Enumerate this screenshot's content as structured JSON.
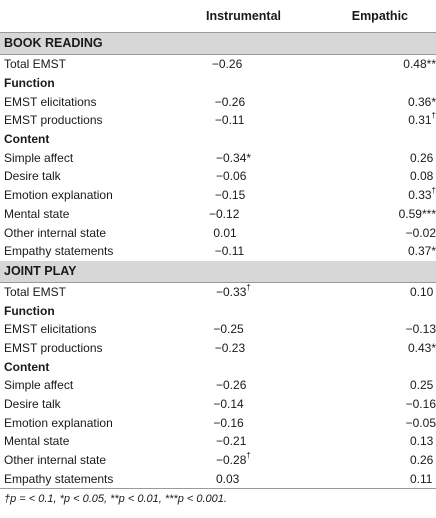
{
  "header": {
    "col1": "",
    "col2": "Instrumental",
    "col3": "Empathic"
  },
  "sections": [
    {
      "title": "BOOK READING",
      "rows": [
        {
          "label": "Total EMST",
          "instrumental": "−0.26",
          "empathic": "0.48**",
          "inst_sup": "",
          "emp_sup": ""
        },
        {
          "label": "Function",
          "sub": true
        },
        {
          "label": "EMST elicitations",
          "instrumental": "−0.26",
          "empathic": "0.36*",
          "inst_sup": "",
          "emp_sup": ""
        },
        {
          "label": "EMST productions",
          "instrumental": "−0.11",
          "empathic": "0.31",
          "inst_sup": "",
          "emp_sup": "†"
        },
        {
          "label": "Content",
          "sub": true
        },
        {
          "label": "Simple affect",
          "instrumental": "−0.34*",
          "empathic": "0.26",
          "inst_sup": "",
          "emp_sup": ""
        },
        {
          "label": "Desire talk",
          "instrumental": "−0.06",
          "empathic": "0.08",
          "inst_sup": "",
          "emp_sup": ""
        },
        {
          "label": "Emotion explanation",
          "instrumental": "−0.15",
          "empathic": "0.33",
          "inst_sup": "",
          "emp_sup": "†"
        },
        {
          "label": "Mental state",
          "instrumental": "−0.12",
          "empathic": "0.59***",
          "inst_sup": "",
          "emp_sup": ""
        },
        {
          "label": "Other internal state",
          "instrumental": "0.01",
          "empathic": "−0.02",
          "inst_sup": "",
          "emp_sup": ""
        },
        {
          "label": "Empathy statements",
          "instrumental": "−0.11",
          "empathic": "0.37*",
          "inst_sup": "",
          "emp_sup": ""
        }
      ]
    },
    {
      "title": "JOINT PLAY",
      "rows": [
        {
          "label": "Total EMST",
          "instrumental": "−0.33",
          "empathic": "0.10",
          "inst_sup": "†",
          "emp_sup": ""
        },
        {
          "label": "Function",
          "sub": true
        },
        {
          "label": "EMST elicitations",
          "instrumental": "−0.25",
          "empathic": "−0.13",
          "inst_sup": "",
          "emp_sup": ""
        },
        {
          "label": "EMST productions",
          "instrumental": "−0.23",
          "empathic": "0.43*",
          "inst_sup": "",
          "emp_sup": ""
        },
        {
          "label": "Content",
          "sub": true
        },
        {
          "label": "Simple affect",
          "instrumental": "−0.26",
          "empathic": "0.25",
          "inst_sup": "",
          "emp_sup": ""
        },
        {
          "label": "Desire talk",
          "instrumental": "−0.14",
          "empathic": "−0.16",
          "inst_sup": "",
          "emp_sup": ""
        },
        {
          "label": "Emotion explanation",
          "instrumental": "−0.16",
          "empathic": "−0.05",
          "inst_sup": "",
          "emp_sup": ""
        },
        {
          "label": "Mental state",
          "instrumental": "−0.21",
          "empathic": "0.13",
          "inst_sup": "",
          "emp_sup": ""
        },
        {
          "label": "Other internal state",
          "instrumental": "−0.28",
          "empathic": "0.26",
          "inst_sup": "†",
          "emp_sup": ""
        },
        {
          "label": "Empathy statements",
          "instrumental": "0.03",
          "empathic": "0.11",
          "inst_sup": "",
          "emp_sup": ""
        }
      ]
    }
  ],
  "footnote": "†p = < 0.1, *p < 0.05, **p < 0.01, ***p < 0.001."
}
